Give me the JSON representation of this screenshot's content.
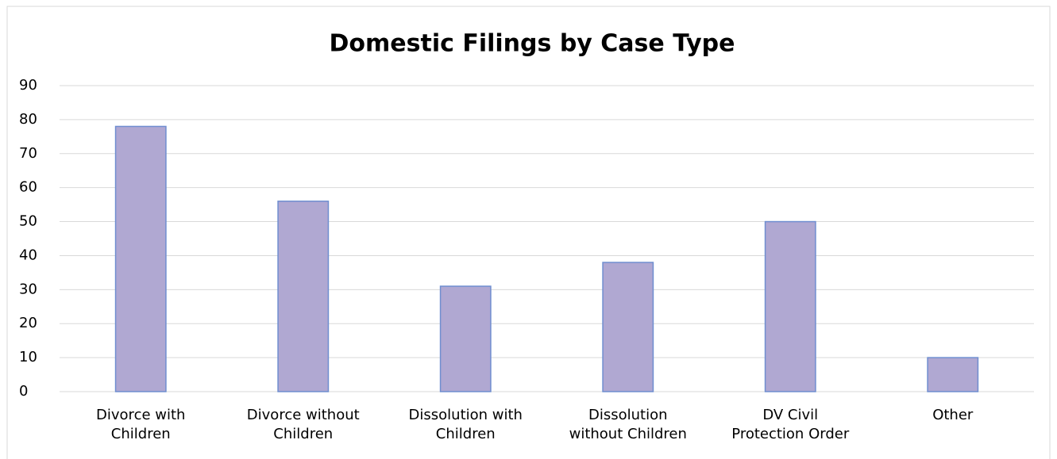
{
  "chart_data": {
    "type": "bar",
    "title": "Domestic Filings by Case Type",
    "categories": [
      "Divorce with\nChildren",
      "Divorce without\nChildren",
      "Dissolution with\nChildren",
      "Dissolution\nwithout Children",
      "DV Civil\nProtection Order",
      "Other"
    ],
    "values": [
      78,
      56,
      31,
      38,
      50,
      10
    ],
    "color": "#b0a8d2",
    "edge_color": "#6f8ed0",
    "ylim": [
      0,
      90
    ],
    "yticks": [
      0,
      10,
      20,
      30,
      40,
      50,
      60,
      70,
      80,
      90
    ],
    "grid": true
  }
}
